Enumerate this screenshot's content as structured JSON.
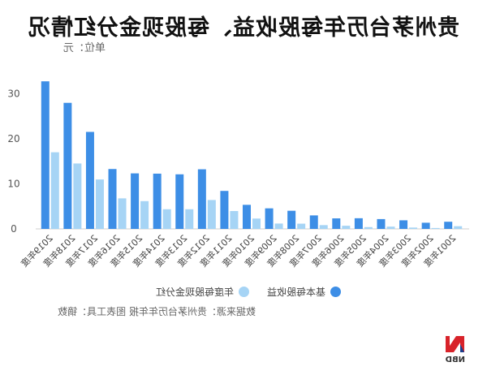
{
  "title": "贵州茅台历年每股收益、每股现金分红情况",
  "unit": "单位：元",
  "source": "数据来源：贵州茅台历年年报 图表工具：镝数",
  "logo_text": "NBD",
  "chart_data": {
    "type": "bar",
    "title": "贵州茅台历年每股收益、每股现金分红情况",
    "ylim": [
      0,
      35
    ],
    "yticks": [
      0,
      10,
      20,
      30
    ],
    "categories": [
      "2001年度",
      "2002年度",
      "2003年度",
      "2004年度",
      "2005年度",
      "2006年度",
      "2007年度",
      "2008年度",
      "2009年度",
      "2010年度",
      "2011年度",
      "2012年度",
      "2013年度",
      "2014年度",
      "2015年度",
      "2016年度",
      "2017年度",
      "2018年度",
      "2019年度"
    ],
    "series": [
      {
        "name": "基本每股收益",
        "color": "#3d8ee6",
        "values": [
          1.59,
          1.37,
          1.91,
          2.18,
          2.37,
          2.34,
          3.0,
          4.03,
          4.57,
          5.35,
          8.44,
          13.25,
          12.13,
          12.28,
          12.34,
          13.31,
          21.56,
          28.02,
          32.8
        ]
      },
      {
        "name": "年度每股现金分红",
        "color": "#a6d4f5",
        "values": [
          0.6,
          0.2,
          0.3,
          0.5,
          0.4,
          0.7,
          0.84,
          1.16,
          1.19,
          2.3,
          3.97,
          6.42,
          4.37,
          4.37,
          6.17,
          6.79,
          10.99,
          14.54,
          17.03
        ]
      }
    ],
    "legend": [
      "基本每股收益",
      "年度每股现金分红"
    ],
    "legend_position": "bottom",
    "grid": false
  }
}
